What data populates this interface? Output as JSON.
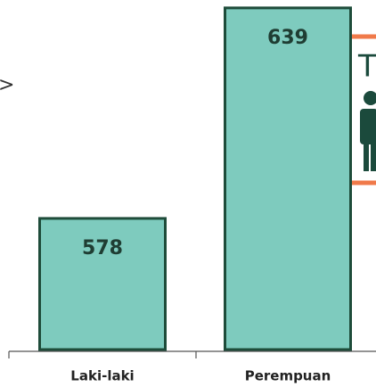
{
  "chart_data": {
    "type": "bar",
    "categories": [
      "Laki-laki",
      "Perempuan"
    ],
    "values": [
      578,
      639
    ],
    "color": "#7ecbbe",
    "edgecolor": "#1e4c3a",
    "ylim": [
      540,
      640
    ],
    "annotations": [
      ">",
      "T"
    ]
  }
}
